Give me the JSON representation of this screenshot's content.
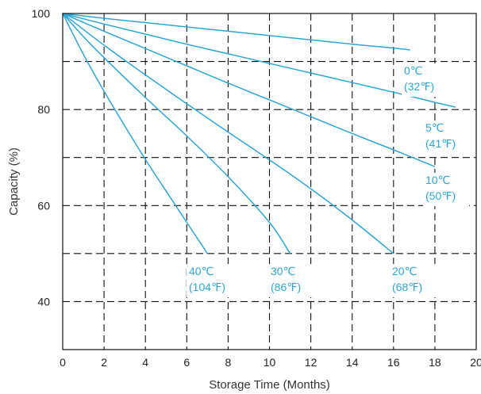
{
  "chart_data": {
    "type": "line",
    "xlabel": "Storage Time (Months)",
    "ylabel": "Capacity (%)",
    "xlim": [
      0,
      20
    ],
    "ylim": [
      30,
      100
    ],
    "x_ticks": [
      "0",
      "2",
      "4",
      "6",
      "8",
      "10",
      "12",
      "14",
      "16",
      "18",
      "20"
    ],
    "y_ticks": [
      "40",
      "60",
      "80",
      "100"
    ],
    "grid": true,
    "line_color": "#2aa7d8",
    "series": [
      {
        "name": "0℃ (32℉)",
        "label": [
          "0℃",
          "(32℉)"
        ],
        "x": [
          0,
          2,
          4,
          6,
          8,
          10,
          12,
          14,
          16,
          16.8
        ],
        "y": [
          100,
          99.0,
          98.1,
          97.2,
          96.3,
          95.4,
          94.5,
          93.6,
          92.8,
          92.4
        ]
      },
      {
        "name": "5℃ (41℉)",
        "label": [
          "5℃",
          "(41℉)"
        ],
        "x": [
          0,
          2,
          4,
          6,
          8,
          10,
          12,
          14,
          16,
          18,
          19
        ],
        "y": [
          100,
          97.8,
          95.7,
          93.6,
          91.6,
          89.6,
          87.6,
          85.6,
          83.6,
          81.5,
          80.5
        ]
      },
      {
        "name": "10℃ (50℉)",
        "label": [
          "10℃",
          "(50℉)"
        ],
        "x": [
          0,
          2,
          4,
          6,
          8,
          10,
          12,
          14,
          16,
          18
        ],
        "y": [
          100,
          96.3,
          92.7,
          89.1,
          85.5,
          82.0,
          78.5,
          75.0,
          71.6,
          68.1
        ]
      },
      {
        "name": "20℃ (68℉)",
        "label": [
          "20℃",
          "(68℉)"
        ],
        "x": [
          0,
          2,
          4,
          6,
          8,
          10,
          12,
          14,
          16
        ],
        "y": [
          100,
          93.4,
          87.2,
          81.2,
          75.3,
          69.5,
          63.5,
          57.0,
          50.0
        ]
      },
      {
        "name": "30℃ (86℉)",
        "label": [
          "30℃",
          "(86℉)"
        ],
        "x": [
          0,
          1,
          2,
          4,
          6,
          8,
          10,
          11
        ],
        "y": [
          100,
          95.2,
          90.8,
          82.5,
          74.5,
          66.0,
          56.5,
          50.0
        ]
      },
      {
        "name": "40℃ (104℉)",
        "label": [
          "40℃",
          "(104℉)"
        ],
        "x": [
          0,
          1,
          2,
          3,
          4,
          5,
          6,
          7
        ],
        "y": [
          100,
          91.5,
          83.8,
          76.6,
          69.6,
          63.0,
          56.5,
          50.0
        ]
      }
    ]
  }
}
